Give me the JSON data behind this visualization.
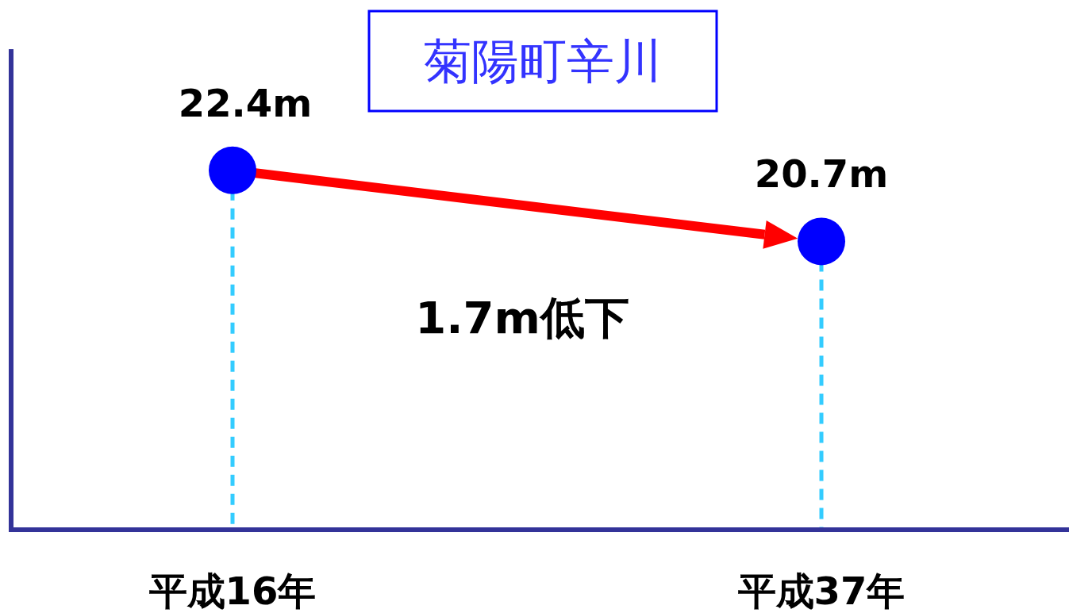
{
  "chart_data": {
    "type": "scatter",
    "title": "菊陽町辛川",
    "categories": [
      "平成16年",
      "平成37年"
    ],
    "series": [
      {
        "color": "#0000ff",
        "values": [
          22.4,
          20.7
        ],
        "value_labels": [
          "22.4m",
          "20.7m"
        ]
      }
    ],
    "ylim": [
      13.8,
      25.3
    ],
    "tick_labels": "x",
    "marker": "circle",
    "annotations": [
      "1.7m低下"
    ]
  }
}
